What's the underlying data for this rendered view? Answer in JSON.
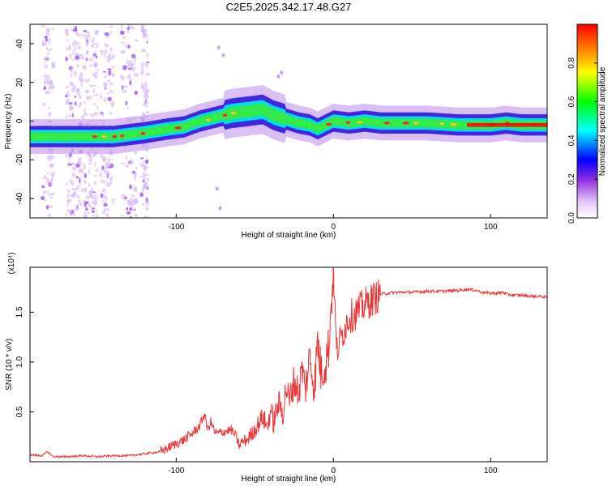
{
  "title": "C2E5.2025.342.17.48.G27",
  "chart_data": [
    {
      "type": "heatmap",
      "name": "spectrogram",
      "xlabel": "Height of straight line (km)",
      "ylabel": "Frequency (Hz)",
      "xlim": [
        -193,
        136
      ],
      "ylim": [
        -50,
        50
      ],
      "xticks": [
        -100,
        0,
        100
      ],
      "xtick_labels": [
        "-100",
        "0",
        "100"
      ],
      "yticks": [
        -40,
        -20,
        0,
        20,
        40
      ],
      "ytick_labels": [
        "-40",
        "-20",
        "0",
        "20",
        "40"
      ],
      "colorbar": {
        "label": "Normalized spectral amplitude",
        "range": [
          0,
          1
        ],
        "ticks": [
          0,
          0.2,
          0.4,
          0.6,
          0.8
        ],
        "tick_labels": [
          "0.0",
          "0.2",
          "0.4",
          "0.6",
          "0.8"
        ],
        "colors": [
          "#ffffff",
          "#e6c8f5",
          "#8a2be2",
          "#0000ff",
          "#00ffff",
          "#00ff00",
          "#ffff00",
          "#ff8000",
          "#ff0000"
        ]
      },
      "ridge_points": [
        [
          -193,
          -8
        ],
        [
          -180,
          -8
        ],
        [
          -160,
          -8
        ],
        [
          -140,
          -8
        ],
        [
          -120,
          -6
        ],
        [
          -105,
          -4
        ],
        [
          -95,
          -3
        ],
        [
          -85,
          0
        ],
        [
          -75,
          2
        ],
        [
          -65,
          4
        ],
        [
          -55,
          5
        ],
        [
          -45,
          6
        ],
        [
          -38,
          3
        ],
        [
          -30,
          1
        ],
        [
          -22,
          -1
        ],
        [
          -15,
          -2
        ],
        [
          -10,
          -4
        ],
        [
          -5,
          -2
        ],
        [
          0,
          0
        ],
        [
          10,
          -1
        ],
        [
          20,
          0
        ],
        [
          30,
          -1
        ],
        [
          40,
          -1
        ],
        [
          60,
          -1
        ],
        [
          80,
          -2
        ],
        [
          100,
          -2
        ],
        [
          110,
          -1
        ],
        [
          120,
          -2
        ],
        [
          136,
          -2
        ]
      ]
    },
    {
      "type": "line",
      "name": "snr",
      "xlabel": "Height of straight line (km)",
      "ylabel": "SNR (10 * v/v)",
      "multiplier_label": "(x10⁴)",
      "xlim": [
        -193,
        136
      ],
      "ylim": [
        0,
        1.95
      ],
      "xticks": [
        -100,
        0,
        100
      ],
      "xtick_labels": [
        "-100",
        "0",
        "100"
      ],
      "yticks": [
        0.5,
        1.0,
        1.5
      ],
      "ytick_labels": [
        "0.5",
        "1.0",
        "1.5"
      ],
      "color": "#ee3333",
      "series": [
        {
          "name": "SNR",
          "x": [
            -193,
            -185,
            -182,
            -178,
            -170,
            -160,
            -150,
            -140,
            -130,
            -125,
            -120,
            -115,
            -110,
            -105,
            -100,
            -95,
            -90,
            -85,
            -82,
            -80,
            -78,
            -75,
            -70,
            -65,
            -62,
            -60,
            -58,
            -55,
            -50,
            -45,
            -42,
            -40,
            -38,
            -35,
            -32,
            -30,
            -28,
            -25,
            -22,
            -20,
            -18,
            -15,
            -12,
            -10,
            -8,
            -5,
            -3,
            0,
            2,
            5,
            8,
            10,
            15,
            20,
            25,
            30,
            35,
            40,
            50,
            60,
            70,
            80,
            85,
            90,
            95,
            100,
            105,
            108,
            110,
            115,
            120,
            125,
            130,
            136
          ],
          "y": [
            0.07,
            0.06,
            0.1,
            0.05,
            0.05,
            0.06,
            0.05,
            0.06,
            0.06,
            0.07,
            0.08,
            0.09,
            0.1,
            0.14,
            0.18,
            0.22,
            0.28,
            0.36,
            0.48,
            0.32,
            0.4,
            0.28,
            0.3,
            0.32,
            0.26,
            0.16,
            0.2,
            0.22,
            0.32,
            0.45,
            0.35,
            0.52,
            0.4,
            0.58,
            0.5,
            0.75,
            0.6,
            0.82,
            0.68,
            0.95,
            0.72,
            1.05,
            0.75,
            1.22,
            0.9,
            1.0,
            1.15,
            1.95,
            1.1,
            1.25,
            1.38,
            1.45,
            1.5,
            1.58,
            1.63,
            1.68,
            1.69,
            1.7,
            1.7,
            1.71,
            1.71,
            1.72,
            1.73,
            1.72,
            1.7,
            1.69,
            1.69,
            1.7,
            1.68,
            1.67,
            1.67,
            1.66,
            1.66,
            1.65
          ]
        }
      ]
    }
  ]
}
